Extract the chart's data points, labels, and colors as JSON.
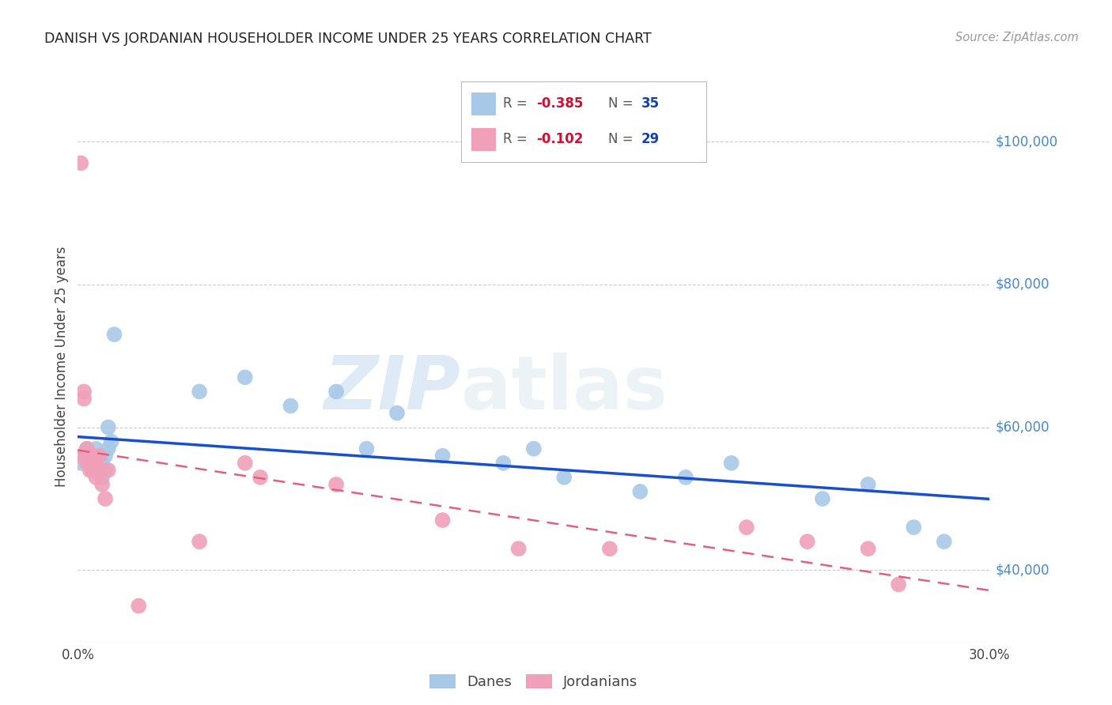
{
  "title": "DANISH VS JORDANIAN HOUSEHOLDER INCOME UNDER 25 YEARS CORRELATION CHART",
  "source": "Source: ZipAtlas.com",
  "ylabel": "Householder Income Under 25 years",
  "yticks": [
    40000,
    60000,
    80000,
    100000
  ],
  "ytick_labels": [
    "$40,000",
    "$60,000",
    "$80,000",
    "$100,000"
  ],
  "xlim": [
    0.0,
    0.3
  ],
  "ylim": [
    30000,
    107000
  ],
  "danes_color": "#a8c8e8",
  "jordanians_color": "#f0a0b8",
  "danes_line_color": "#1a4fcc",
  "jordanians_line_color": "#e06080",
  "watermark_text": "ZIP",
  "watermark_text2": "atlas",
  "legend_danes_R": "-0.385",
  "legend_danes_N": "35",
  "legend_jordanians_R": "-0.102",
  "legend_jordanians_N": "29",
  "danes_x": [
    0.001,
    0.002,
    0.003,
    0.004,
    0.005,
    0.005,
    0.006,
    0.006,
    0.007,
    0.007,
    0.008,
    0.008,
    0.009,
    0.009,
    0.01,
    0.01,
    0.011,
    0.012,
    0.04,
    0.055,
    0.07,
    0.085,
    0.095,
    0.105,
    0.12,
    0.14,
    0.15,
    0.16,
    0.185,
    0.2,
    0.215,
    0.245,
    0.26,
    0.275,
    0.285
  ],
  "danes_y": [
    55000,
    56000,
    57000,
    55000,
    56000,
    54000,
    55000,
    57000,
    56000,
    54000,
    55000,
    53000,
    56000,
    54000,
    60000,
    57000,
    58000,
    73000,
    65000,
    67000,
    63000,
    65000,
    57000,
    62000,
    56000,
    55000,
    57000,
    53000,
    51000,
    53000,
    55000,
    50000,
    52000,
    46000,
    44000
  ],
  "jordanians_x": [
    0.001,
    0.001,
    0.002,
    0.002,
    0.003,
    0.003,
    0.004,
    0.004,
    0.005,
    0.005,
    0.006,
    0.006,
    0.007,
    0.007,
    0.008,
    0.009,
    0.01,
    0.02,
    0.04,
    0.055,
    0.06,
    0.085,
    0.12,
    0.145,
    0.175,
    0.22,
    0.24,
    0.26,
    0.27
  ],
  "jordanians_y": [
    97000,
    56000,
    65000,
    64000,
    57000,
    55000,
    56000,
    54000,
    56000,
    54000,
    55000,
    53000,
    56000,
    54000,
    52000,
    50000,
    54000,
    35000,
    44000,
    55000,
    53000,
    52000,
    47000,
    43000,
    43000,
    46000,
    44000,
    43000,
    38000
  ]
}
